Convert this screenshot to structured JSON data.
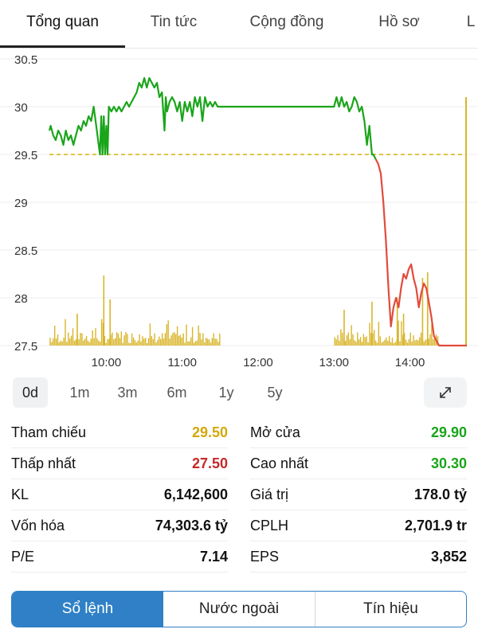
{
  "tabs": [
    {
      "label": "Tổng quan",
      "active": true
    },
    {
      "label": "Tin tức"
    },
    {
      "label": "Cộng đồng"
    },
    {
      "label": "Hồ sơ"
    },
    {
      "label": "L"
    }
  ],
  "chart_data": {
    "type": "line",
    "y_ticks": [
      "30.5",
      "30",
      "29.5",
      "29",
      "28.5",
      "28",
      "27.5"
    ],
    "x_ticks": [
      "10:00",
      "11:00",
      "12:00",
      "13:00",
      "14:00"
    ],
    "ylim": [
      27.5,
      30.5
    ],
    "reference_price": 29.5,
    "colors": {
      "up": "#1aa51a",
      "down": "#e24b3c",
      "reference": "#d9b200",
      "volume": "#d9b52a"
    },
    "price_series": [
      [
        "09:15",
        29.75
      ],
      [
        "09:16",
        29.8
      ],
      [
        "09:18",
        29.7
      ],
      [
        "09:20",
        29.65
      ],
      [
        "09:22",
        29.75
      ],
      [
        "09:24",
        29.7
      ],
      [
        "09:26",
        29.6
      ],
      [
        "09:28",
        29.75
      ],
      [
        "09:30",
        29.65
      ],
      [
        "09:32",
        29.7
      ],
      [
        "09:34",
        29.6
      ],
      [
        "09:36",
        29.7
      ],
      [
        "09:38",
        29.8
      ],
      [
        "09:40",
        29.75
      ],
      [
        "09:42",
        29.85
      ],
      [
        "09:44",
        29.8
      ],
      [
        "09:46",
        29.9
      ],
      [
        "09:48",
        29.85
      ],
      [
        "09:50",
        30.0
      ],
      [
        "09:52",
        29.8
      ],
      [
        "09:54",
        29.6
      ],
      [
        "09:55",
        29.5
      ],
      [
        "09:56",
        29.9
      ],
      [
        "09:57",
        29.5
      ],
      [
        "09:58",
        29.9
      ],
      [
        "09:59",
        29.5
      ],
      [
        "10:00",
        29.8
      ],
      [
        "10:01",
        29.5
      ],
      [
        "10:02",
        30.0
      ],
      [
        "10:04",
        29.95
      ],
      [
        "10:06",
        30.0
      ],
      [
        "10:08",
        29.95
      ],
      [
        "10:10",
        30.0
      ],
      [
        "10:12",
        29.95
      ],
      [
        "10:14",
        30.0
      ],
      [
        "10:16",
        30.05
      ],
      [
        "10:18",
        30.0
      ],
      [
        "10:20",
        30.05
      ],
      [
        "10:22",
        30.1
      ],
      [
        "10:24",
        30.15
      ],
      [
        "10:26",
        30.25
      ],
      [
        "10:28",
        30.2
      ],
      [
        "10:30",
        30.3
      ],
      [
        "10:32",
        30.2
      ],
      [
        "10:34",
        30.3
      ],
      [
        "10:36",
        30.25
      ],
      [
        "10:38",
        30.2
      ],
      [
        "10:40",
        30.25
      ],
      [
        "10:42",
        30.1
      ],
      [
        "10:44",
        30.15
      ],
      [
        "10:46",
        29.75
      ],
      [
        "10:47",
        30.1
      ],
      [
        "10:48",
        29.95
      ],
      [
        "10:50",
        30.05
      ],
      [
        "10:52",
        30.1
      ],
      [
        "10:54",
        30.05
      ],
      [
        "10:56",
        29.95
      ],
      [
        "10:58",
        30.05
      ],
      [
        "11:00",
        29.85
      ],
      [
        "11:02",
        30.05
      ],
      [
        "11:04",
        29.95
      ],
      [
        "11:06",
        30.05
      ],
      [
        "11:08",
        29.9
      ],
      [
        "11:10",
        30.1
      ],
      [
        "11:12",
        30.0
      ],
      [
        "11:14",
        30.1
      ],
      [
        "11:16",
        29.85
      ],
      [
        "11:18",
        30.1
      ],
      [
        "11:20",
        30.0
      ],
      [
        "11:22",
        30.05
      ],
      [
        "11:24",
        30.0
      ],
      [
        "11:26",
        30.05
      ],
      [
        "11:28",
        30.0
      ],
      [
        "11:30",
        30.0
      ],
      [
        "13:00",
        30.0
      ],
      [
        "13:02",
        30.1
      ],
      [
        "13:04",
        30.0
      ],
      [
        "13:06",
        30.1
      ],
      [
        "13:08",
        30.0
      ],
      [
        "13:10",
        30.05
      ],
      [
        "13:12",
        29.95
      ],
      [
        "13:14",
        30.0
      ],
      [
        "13:16",
        30.1
      ],
      [
        "13:18",
        30.05
      ],
      [
        "13:20",
        29.95
      ],
      [
        "13:22",
        30.0
      ],
      [
        "13:24",
        29.85
      ],
      [
        "13:26",
        29.6
      ],
      [
        "13:28",
        29.8
      ],
      [
        "13:30",
        29.5
      ],
      [
        "13:31",
        29.5
      ],
      [
        "13:33",
        29.45
      ],
      [
        "13:35",
        29.4
      ],
      [
        "13:37",
        29.3
      ],
      [
        "13:39",
        29.0
      ],
      [
        "13:41",
        28.6
      ],
      [
        "13:43",
        28.1
      ],
      [
        "13:45",
        27.7
      ],
      [
        "13:47",
        27.9
      ],
      [
        "13:49",
        28.0
      ],
      [
        "13:51",
        27.9
      ],
      [
        "13:53",
        28.1
      ],
      [
        "13:55",
        28.25
      ],
      [
        "13:57",
        28.2
      ],
      [
        "13:59",
        28.3
      ],
      [
        "14:01",
        28.35
      ],
      [
        "14:03",
        28.2
      ],
      [
        "14:05",
        28.1
      ],
      [
        "14:07",
        27.9
      ],
      [
        "14:09",
        28.05
      ],
      [
        "14:11",
        28.15
      ],
      [
        "14:13",
        28.1
      ],
      [
        "14:15",
        27.95
      ],
      [
        "14:17",
        27.8
      ],
      [
        "14:19",
        27.6
      ],
      [
        "14:21",
        27.55
      ],
      [
        "14:23",
        27.5
      ],
      [
        "14:30",
        27.5
      ],
      [
        "14:45",
        27.5
      ]
    ]
  },
  "timeframes": [
    {
      "label": "0d",
      "active": true
    },
    {
      "label": "1m"
    },
    {
      "label": "3m"
    },
    {
      "label": "6m"
    },
    {
      "label": "1y"
    },
    {
      "label": "5y"
    }
  ],
  "expand_icon": "expand-arrows-icon",
  "stats": [
    {
      "left": {
        "label": "Tham chiếu",
        "value": "29.50",
        "color": "#d4a80a"
      },
      "right": {
        "label": "Mở cửa",
        "value": "29.90",
        "color": "#1aa51a"
      }
    },
    {
      "left": {
        "label": "Thấp nhất",
        "value": "27.50",
        "color": "#c62828"
      },
      "right": {
        "label": "Cao nhất",
        "value": "30.30",
        "color": "#1aa51a"
      }
    },
    {
      "left": {
        "label": "KL",
        "value": "6,142,600",
        "color": "#111111"
      },
      "right": {
        "label": "Giá trị",
        "value": "178.0 tỷ",
        "color": "#111111"
      }
    },
    {
      "left": {
        "label": "Vốn hóa",
        "value": "74,303.6 tỷ",
        "color": "#111111"
      },
      "right": {
        "label": "CPLH",
        "value": "2,701.9 tr",
        "color": "#111111"
      }
    },
    {
      "left": {
        "label": "P/E",
        "value": "7.14",
        "color": "#111111"
      },
      "right": {
        "label": "EPS",
        "value": "3,852",
        "color": "#111111"
      }
    }
  ],
  "bottom_tabs": [
    {
      "label": "Sổ lệnh",
      "active": true
    },
    {
      "label": "Nước ngoài"
    },
    {
      "label": "Tín hiệu"
    }
  ]
}
